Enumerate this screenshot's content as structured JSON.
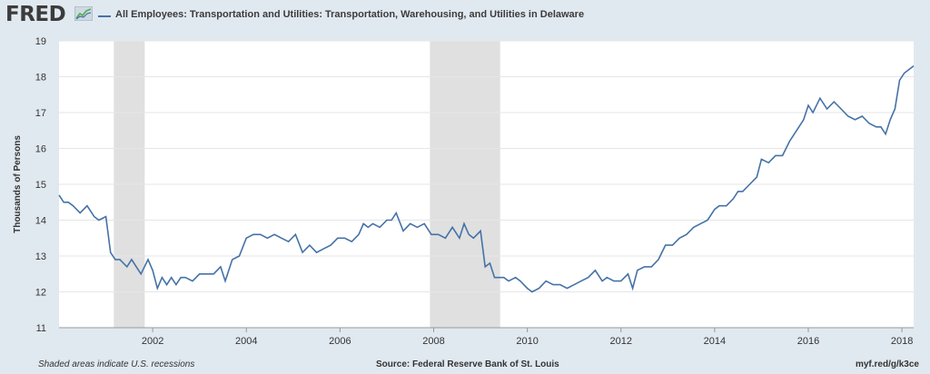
{
  "header": {
    "logo_text": "FRED",
    "title": "All Employees: Transportation and Utilities: Transportation, Warehousing, and Utilities in Delaware"
  },
  "footer": {
    "note": "Shaded areas indicate U.S. recessions",
    "source": "Source: Federal Reserve Bank of St. Louis",
    "url": "myf.red/g/k3ce"
  },
  "colors": {
    "background": "#e1e9f0",
    "series": "#4572a7",
    "recession": "#e0e0e0",
    "grid": "#e6e6e6"
  },
  "chart_data": {
    "type": "line",
    "title": "All Employees: Transportation and Utilities: Transportation, Warehousing, and Utilities in Delaware",
    "xlabel": "",
    "ylabel": "Thousands of Persons",
    "xlim": [
      2000.0,
      2018.25
    ],
    "ylim": [
      11,
      19
    ],
    "grid": "horizontal",
    "x_ticks": [
      2002,
      2004,
      2006,
      2008,
      2010,
      2012,
      2014,
      2016,
      2018
    ],
    "y_ticks": [
      11,
      12,
      13,
      14,
      15,
      16,
      17,
      18,
      19
    ],
    "recessions": [
      [
        2001.17,
        2001.83
      ],
      [
        2007.92,
        2009.42
      ]
    ],
    "series": [
      {
        "name": "All Employees: Transportation and Utilities: Transportation, Warehousing, and Utilities in Delaware",
        "x": [
          2000.0,
          2000.1,
          2000.2,
          2000.3,
          2000.45,
          2000.6,
          2000.75,
          2000.85,
          2001.0,
          2001.1,
          2001.2,
          2001.3,
          2001.45,
          2001.55,
          2001.65,
          2001.75,
          2001.9,
          2002.0,
          2002.1,
          2002.2,
          2002.3,
          2002.4,
          2002.5,
          2002.6,
          2002.7,
          2002.85,
          2003.0,
          2003.1,
          2003.3,
          2003.45,
          2003.55,
          2003.7,
          2003.85,
          2004.0,
          2004.15,
          2004.3,
          2004.45,
          2004.6,
          2004.75,
          2004.9,
          2005.05,
          2005.2,
          2005.35,
          2005.5,
          2005.65,
          2005.8,
          2005.95,
          2006.1,
          2006.25,
          2006.4,
          2006.5,
          2006.6,
          2006.7,
          2006.85,
          2007.0,
          2007.1,
          2007.2,
          2007.35,
          2007.5,
          2007.65,
          2007.8,
          2007.95,
          2008.1,
          2008.25,
          2008.4,
          2008.55,
          2008.65,
          2008.75,
          2008.85,
          2009.0,
          2009.1,
          2009.2,
          2009.3,
          2009.4,
          2009.5,
          2009.6,
          2009.75,
          2009.85,
          2010.0,
          2010.1,
          2010.25,
          2010.4,
          2010.55,
          2010.7,
          2010.85,
          2011.0,
          2011.15,
          2011.3,
          2011.45,
          2011.6,
          2011.7,
          2011.85,
          2012.0,
          2012.15,
          2012.25,
          2012.35,
          2012.5,
          2012.65,
          2012.8,
          2012.95,
          2013.1,
          2013.25,
          2013.4,
          2013.55,
          2013.7,
          2013.85,
          2014.0,
          2014.1,
          2014.25,
          2014.4,
          2014.5,
          2014.6,
          2014.75,
          2014.9,
          2015.0,
          2015.15,
          2015.3,
          2015.45,
          2015.6,
          2015.75,
          2015.9,
          2016.0,
          2016.1,
          2016.25,
          2016.4,
          2016.55,
          2016.7,
          2016.85,
          2017.0,
          2017.15,
          2017.3,
          2017.45,
          2017.55,
          2017.65,
          2017.75,
          2017.85,
          2017.95,
          2018.05,
          2018.15,
          2018.25
        ],
        "y": [
          14.7,
          14.5,
          14.5,
          14.4,
          14.2,
          14.4,
          14.1,
          14.0,
          14.1,
          13.1,
          12.9,
          12.9,
          12.7,
          12.9,
          12.7,
          12.5,
          12.9,
          12.6,
          12.1,
          12.4,
          12.2,
          12.4,
          12.2,
          12.4,
          12.4,
          12.3,
          12.5,
          12.5,
          12.5,
          12.7,
          12.3,
          12.9,
          13.0,
          13.5,
          13.6,
          13.6,
          13.5,
          13.6,
          13.5,
          13.4,
          13.6,
          13.1,
          13.3,
          13.1,
          13.2,
          13.3,
          13.5,
          13.5,
          13.4,
          13.6,
          13.9,
          13.8,
          13.9,
          13.8,
          14.0,
          14.0,
          14.2,
          13.7,
          13.9,
          13.8,
          13.9,
          13.6,
          13.6,
          13.5,
          13.8,
          13.5,
          13.9,
          13.6,
          13.5,
          13.7,
          12.7,
          12.8,
          12.4,
          12.4,
          12.4,
          12.3,
          12.4,
          12.3,
          12.1,
          12.0,
          12.1,
          12.3,
          12.2,
          12.2,
          12.1,
          12.2,
          12.3,
          12.4,
          12.6,
          12.3,
          12.4,
          12.3,
          12.3,
          12.5,
          12.1,
          12.6,
          12.7,
          12.7,
          12.9,
          13.3,
          13.3,
          13.5,
          13.6,
          13.8,
          13.9,
          14.0,
          14.3,
          14.4,
          14.4,
          14.6,
          14.8,
          14.8,
          15.0,
          15.2,
          15.7,
          15.6,
          15.8,
          15.8,
          16.2,
          16.5,
          16.8,
          17.2,
          17.0,
          17.4,
          17.1,
          17.3,
          17.1,
          16.9,
          16.8,
          16.9,
          16.7,
          16.6,
          16.6,
          16.4,
          16.8,
          17.1,
          17.9,
          18.1,
          18.2,
          18.3
        ]
      }
    ]
  }
}
